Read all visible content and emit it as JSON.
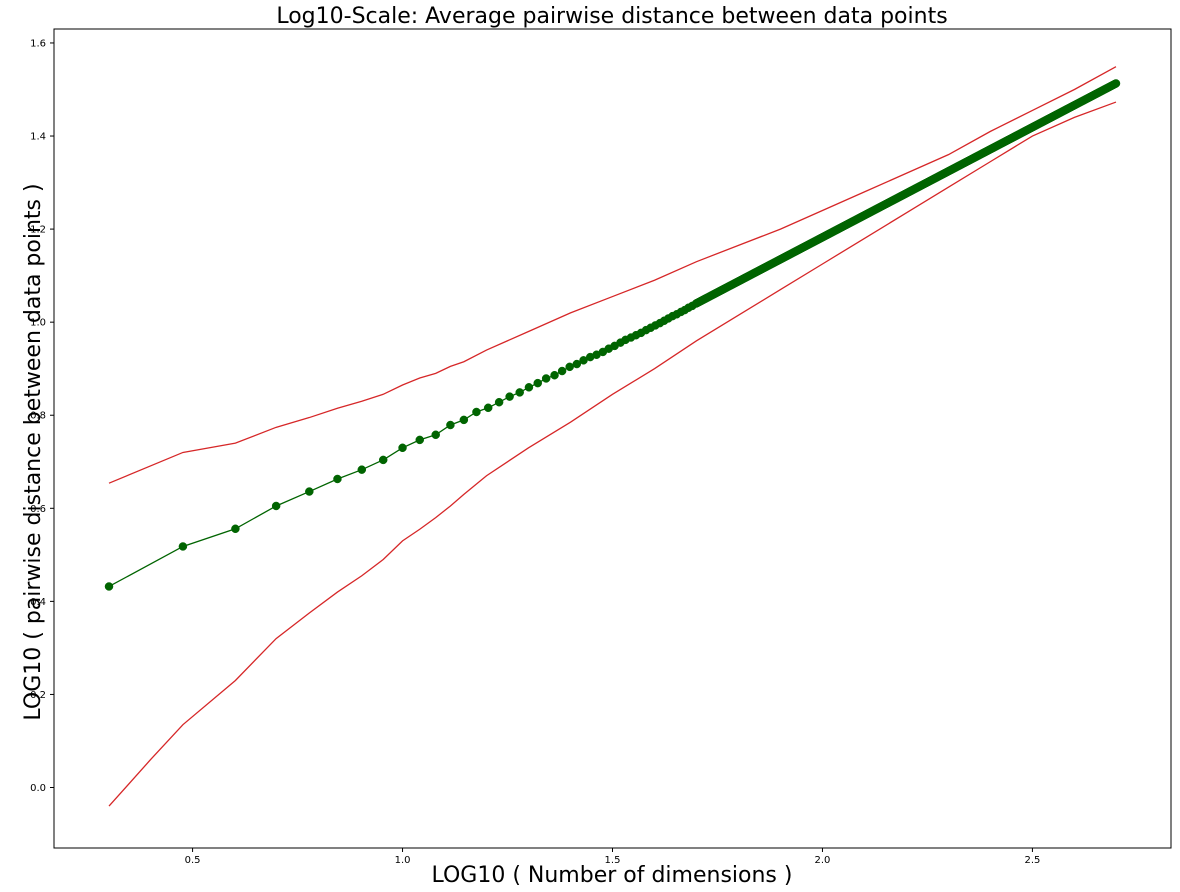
{
  "chart_data": {
    "type": "line",
    "title": "Log10-Scale: Average pairwise distance between data points",
    "xlabel": "LOG10 ( Number of dimensions )",
    "ylabel": "LOG10 ( pairwise distance between data points )",
    "xlim": [
      0.17,
      2.83
    ],
    "ylim": [
      -0.13,
      1.63
    ],
    "xticks": [
      0.5,
      1.0,
      1.5,
      2.0,
      2.5
    ],
    "xtick_labels": [
      "0.5",
      "1.0",
      "1.5",
      "2.0",
      "2.5"
    ],
    "yticks": [
      0.0,
      0.2,
      0.4,
      0.6,
      0.8,
      1.0,
      1.2,
      1.4,
      1.6
    ],
    "ytick_labels": [
      "0.0",
      "0.2",
      "0.4",
      "0.6",
      "0.8",
      "1.0",
      "1.2",
      "1.4",
      "1.6"
    ],
    "grid": false,
    "legend": "none",
    "series": [
      {
        "role": "mean",
        "color": "#006400",
        "marker": "circle",
        "x": [
          0.301,
          0.477,
          0.602,
          0.699,
          0.778,
          0.845,
          0.903,
          0.954,
          1.0,
          1.041,
          1.079,
          1.114,
          1.146,
          1.176,
          1.204,
          1.23,
          1.255,
          1.279,
          1.301,
          1.322,
          1.342,
          1.362,
          1.38,
          1.398,
          1.415,
          1.431,
          1.447,
          1.462,
          1.477,
          1.491,
          1.505,
          1.519,
          1.531,
          1.544,
          1.556,
          1.568,
          1.58,
          1.591,
          1.602,
          1.613,
          1.623,
          1.633,
          1.643,
          1.653,
          1.663,
          1.672,
          1.681,
          1.69,
          1.699
        ],
        "y": [
          0.432,
          0.518,
          0.556,
          0.605,
          0.636,
          0.663,
          0.683,
          0.704,
          0.73,
          0.747,
          0.758,
          0.779,
          0.79,
          0.807,
          0.816,
          0.828,
          0.84,
          0.849,
          0.86,
          0.869,
          0.879,
          0.886,
          0.895,
          0.904,
          0.91,
          0.918,
          0.925,
          0.93,
          0.936,
          0.943,
          0.949,
          0.956,
          0.962,
          0.967,
          0.972,
          0.977,
          0.983,
          0.988,
          0.993,
          0.998,
          1.003,
          1.008,
          1.013,
          1.017,
          1.022,
          1.026,
          1.031,
          1.035,
          1.04
        ],
        "dense_tail": {
          "x_start": 1.699,
          "x_end": 2.699,
          "y_start": 1.04,
          "y_end": 1.513
        }
      },
      {
        "role": "upper",
        "color": "#d62728",
        "marker": "none",
        "x": [
          0.301,
          0.477,
          0.602,
          0.699,
          0.778,
          0.845,
          0.903,
          0.954,
          1.0,
          1.041,
          1.079,
          1.114,
          1.146,
          1.2,
          1.3,
          1.4,
          1.5,
          1.6,
          1.7,
          1.8,
          1.9,
          2.0,
          2.1,
          2.2,
          2.3,
          2.4,
          2.5,
          2.6,
          2.699
        ],
        "y": [
          0.654,
          0.72,
          0.74,
          0.774,
          0.795,
          0.815,
          0.83,
          0.845,
          0.865,
          0.88,
          0.89,
          0.905,
          0.915,
          0.94,
          0.98,
          1.02,
          1.055,
          1.09,
          1.13,
          1.165,
          1.2,
          1.24,
          1.28,
          1.32,
          1.36,
          1.41,
          1.455,
          1.5,
          1.549
        ]
      },
      {
        "role": "lower",
        "color": "#d62728",
        "marker": "none",
        "x": [
          0.301,
          0.4,
          0.477,
          0.602,
          0.699,
          0.778,
          0.845,
          0.903,
          0.954,
          1.0,
          1.041,
          1.079,
          1.114,
          1.146,
          1.2,
          1.3,
          1.4,
          1.5,
          1.6,
          1.7,
          1.8,
          1.9,
          2.0,
          2.1,
          2.2,
          2.3,
          2.4,
          2.5,
          2.6,
          2.699
        ],
        "y": [
          -0.04,
          0.06,
          0.135,
          0.23,
          0.32,
          0.375,
          0.42,
          0.455,
          0.49,
          0.53,
          0.555,
          0.58,
          0.605,
          0.63,
          0.67,
          0.73,
          0.785,
          0.845,
          0.9,
          0.96,
          1.015,
          1.07,
          1.125,
          1.18,
          1.235,
          1.29,
          1.345,
          1.4,
          1.44,
          1.473
        ]
      }
    ]
  }
}
